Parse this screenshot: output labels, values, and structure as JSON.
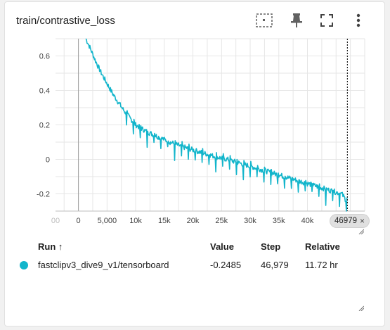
{
  "card": {
    "title": "train/contrastive_loss"
  },
  "toolbar": {
    "fit_domain_icon": "fit-to-data-icon",
    "pin_icon": "pin-icon",
    "fullscreen_icon": "fullscreen-icon",
    "more_icon": "more-vert-icon"
  },
  "chart_data": {
    "type": "line",
    "title": "",
    "xlabel": "",
    "ylabel": "",
    "xlim": [
      -4000,
      50000
    ],
    "ylim": [
      -0.3,
      0.7
    ],
    "x_ticks": [
      "00",
      "0",
      "5,000",
      "10k",
      "15k",
      "20k",
      "25k",
      "30k",
      "35k",
      "40k"
    ],
    "x_tick_values": [
      -4000,
      0,
      5000,
      10000,
      15000,
      20000,
      25000,
      30000,
      35000,
      40000
    ],
    "y_ticks": [
      "0.6",
      "0.4",
      "0.2",
      "0",
      "-0.2"
    ],
    "y_tick_values": [
      0.6,
      0.4,
      0.2,
      0,
      -0.2
    ],
    "grid": true,
    "series": [
      {
        "color": "#12b5cb",
        "x": [
          1300,
          2000,
          3000,
          4000,
          5000,
          6000,
          7000,
          8000,
          9000,
          10000,
          12000,
          14000,
          16000,
          18000,
          20000,
          22000,
          24000,
          26000,
          28000,
          30000,
          32000,
          34000,
          36000,
          38000,
          40000,
          42000,
          44000,
          46000,
          46979
        ],
        "y": [
          0.7,
          0.65,
          0.57,
          0.5,
          0.44,
          0.38,
          0.33,
          0.28,
          0.24,
          0.2,
          0.16,
          0.13,
          0.1,
          0.075,
          0.055,
          0.035,
          0.015,
          0.0,
          -0.02,
          -0.04,
          -0.06,
          -0.08,
          -0.1,
          -0.12,
          -0.14,
          -0.16,
          -0.18,
          -0.2,
          -0.2485
        ]
      }
    ],
    "current_step": 46979
  },
  "step_chip": {
    "label": "46979",
    "close": "×"
  },
  "table": {
    "headers": {
      "run": "Run ↑",
      "value": "Value",
      "step": "Step",
      "relative": "Relative"
    },
    "rows": [
      {
        "color": "#12b5cb",
        "run": "fastclipv3_dive9_v1/tensorboard",
        "value": "-0.2485",
        "step": "46,979",
        "relative": "11.72 hr"
      }
    ]
  }
}
